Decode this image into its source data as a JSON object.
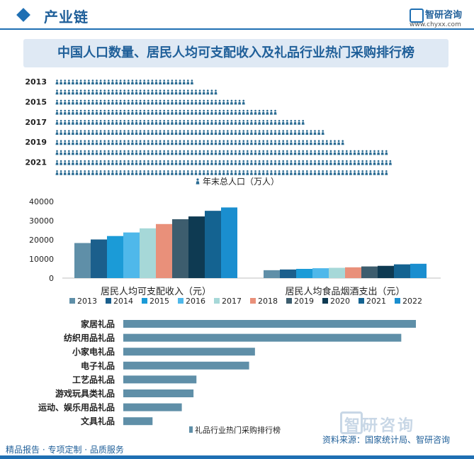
{
  "header": {
    "section": "产业链",
    "brand": "智研咨询",
    "url": "www.chyxx.com"
  },
  "title": "中国人口数量、居民人均可支配收入及礼品行业热门采购排行榜",
  "footer": {
    "left": "精品报告 · 专项定制 · 品质服务",
    "source": "资料来源：国家统计局、智研咨询"
  },
  "colors": {
    "brand": "#1f6fb3",
    "icon": "#2a6b93",
    "bar_rank": "#5f8fa8"
  },
  "chart_data": [
    {
      "type": "bar",
      "orientation": "horizontal",
      "marker": "person-icon",
      "categories": [
        "2013",
        "2014",
        "2015",
        "2016",
        "2017",
        "2018",
        "2019",
        "2020",
        "2021",
        "2022"
      ],
      "tick_labels": [
        "2013",
        "2015",
        "2017",
        "2019",
        "2021"
      ],
      "values": [
        136072,
        136782,
        137462,
        138271,
        139008,
        139538,
        140005,
        141212,
        141260,
        141175
      ],
      "xlim": [
        132500,
        141500
      ],
      "legend": "年末总人口（万人）"
    },
    {
      "type": "bar",
      "categories": [
        "居民人均可支配收入（元）",
        "居民人均食品烟酒支出（元）"
      ],
      "series": [
        {
          "name": "2013",
          "color": "#5f8fa8",
          "values": [
            18311,
            4127
          ]
        },
        {
          "name": "2014",
          "color": "#1b5f8c",
          "values": [
            20167,
            4494
          ]
        },
        {
          "name": "2015",
          "color": "#1b9bd7",
          "values": [
            21966,
            4814
          ]
        },
        {
          "name": "2016",
          "color": "#4fb8ea",
          "values": [
            23821,
            5151
          ]
        },
        {
          "name": "2017",
          "color": "#a6d8d8",
          "values": [
            25974,
            5374
          ]
        },
        {
          "name": "2018",
          "color": "#e9907a",
          "values": [
            28228,
            5631
          ]
        },
        {
          "name": "2019",
          "color": "#3d5d6e",
          "values": [
            30733,
            6084
          ]
        },
        {
          "name": "2020",
          "color": "#0e3a52",
          "values": [
            32189,
            6397
          ]
        },
        {
          "name": "2021",
          "color": "#146391",
          "values": [
            35128,
            7178
          ]
        },
        {
          "name": "2022",
          "color": "#1a8ecf",
          "values": [
            36883,
            7481
          ]
        }
      ],
      "ylim": [
        0,
        40000
      ],
      "yticks": [
        "0",
        "10000",
        "20000",
        "30000",
        "40000"
      ],
      "legend": "bottom"
    },
    {
      "type": "bar",
      "orientation": "horizontal",
      "categories": [
        "家居礼品",
        "纺织用品礼品",
        "小家电礼品",
        "电子礼品",
        "工艺品礼品",
        "游戏玩具类礼品",
        "运动、娱乐用品礼品",
        "文具礼品"
      ],
      "values": [
        100,
        95,
        45,
        43,
        25,
        24,
        20,
        10
      ],
      "legend": "礼品行业热门采购排行榜"
    }
  ]
}
